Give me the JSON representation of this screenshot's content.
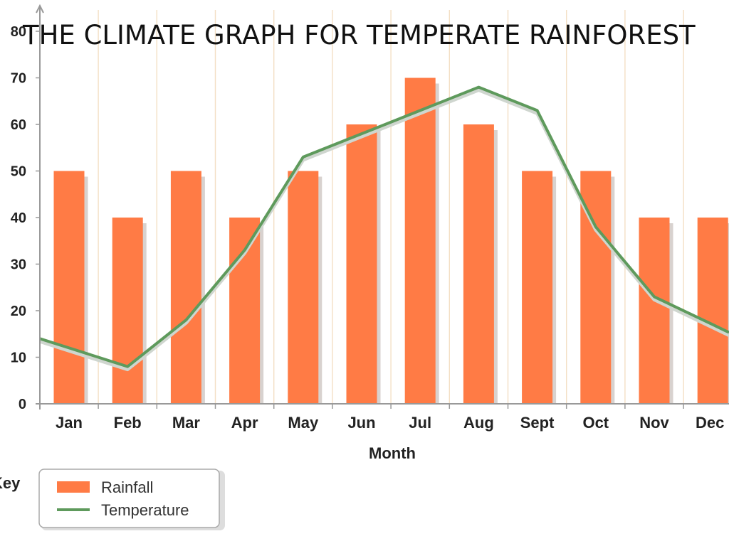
{
  "chart_data": {
    "type": "bar",
    "title": "THE CLIMATE GRAPH FOR TEMPERATE RAINFOREST",
    "xlabel": "Month",
    "ylabel": "",
    "categories": [
      "Jan",
      "Feb",
      "Mar",
      "Apr",
      "May",
      "Jun",
      "Jul",
      "Aug",
      "Sept",
      "Oct",
      "Nov",
      "Dec"
    ],
    "ylim": [
      0,
      80
    ],
    "yticks": [
      0,
      10,
      20,
      30,
      40,
      50,
      60,
      70,
      80
    ],
    "grid": "vertical",
    "series": [
      {
        "name": "Rainfall",
        "type": "bar",
        "color": "#ff7b45",
        "values": [
          50,
          40,
          50,
          40,
          50,
          60,
          70,
          60,
          50,
          50,
          40,
          40
        ]
      },
      {
        "name": "Temperature",
        "type": "line",
        "color": "#5e9a5c",
        "values": [
          12,
          8,
          18,
          33,
          53,
          58,
          63,
          68,
          63,
          38,
          23,
          17
        ]
      }
    ],
    "legend": {
      "title": "Key",
      "position": "bottom-left"
    }
  }
}
